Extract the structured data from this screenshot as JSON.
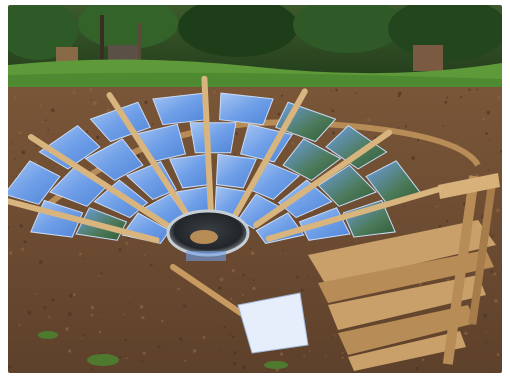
{
  "scene": {
    "subject": "diy-solar-concentrator",
    "elements": [
      "trees",
      "grass-strip",
      "bare-soil-ground",
      "wooden-stakes",
      "mirror-panels",
      "cooking-pot",
      "wooden-pallets"
    ]
  },
  "colors": {
    "sky_trees_dark": "#1f3a1a",
    "grass": "#5f9a3a",
    "soil": "#6b4a30",
    "mirror_blue": "#6f9fe8",
    "mirror_light": "#b8d2f5",
    "wood": "#caa06a",
    "pot_metal": "#9aa4ad"
  }
}
